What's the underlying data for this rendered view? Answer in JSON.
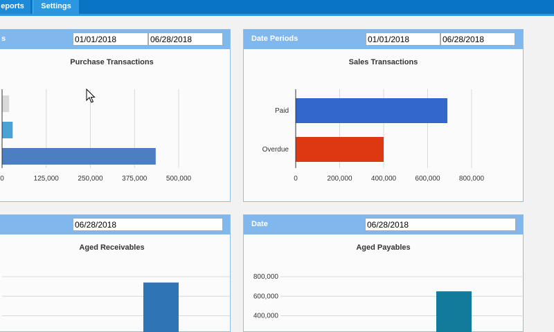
{
  "nav": {
    "tabs": [
      {
        "label": "eports"
      },
      {
        "label": "Settings"
      }
    ]
  },
  "panels": {
    "purchase": {
      "header_title": "s",
      "start_date": "01/01/2018",
      "end_date": "06/28/2018"
    },
    "sales": {
      "header_title": "Date Periods",
      "start_date": "01/01/2018",
      "end_date": "06/28/2018"
    },
    "receivables": {
      "date": "06/28/2018"
    },
    "payables": {
      "header_title": "Date",
      "date": "06/28/2018"
    }
  },
  "colors": {
    "nav_bg": "#0a74c4",
    "panel_header": "#80b8ee"
  },
  "chart_data": [
    {
      "type": "bar",
      "orientation": "horizontal",
      "title": "Purchase Transactions",
      "categories": [
        "",
        "",
        ""
      ],
      "values": [
        20000,
        30000,
        435000
      ],
      "colors": [
        "#d9d9d9",
        "#4aa3d4",
        "#4a7fc1"
      ],
      "xlim": [
        0,
        500000
      ],
      "xticks": [
        "0",
        "125,000",
        "250,000",
        "375,000",
        "500,000"
      ],
      "grid": true
    },
    {
      "type": "bar",
      "orientation": "horizontal",
      "title": "Sales Transactions",
      "categories": [
        "Paid",
        "Overdue"
      ],
      "values": [
        690000,
        400000
      ],
      "colors": [
        "#3467cc",
        "#dc3912"
      ],
      "xlim": [
        0,
        800000
      ],
      "xticks": [
        "0",
        "200,000",
        "400,000",
        "600,000",
        "800,000"
      ],
      "grid": true
    },
    {
      "type": "bar",
      "title": "Aged Receivables",
      "values": [
        740000
      ],
      "colors": [
        "#2f74b5"
      ],
      "ylim": [
        0,
        800000
      ],
      "grid": true
    },
    {
      "type": "bar",
      "title": "Aged Payables",
      "values": [
        650000
      ],
      "colors": [
        "#127b9b"
      ],
      "ylim": [
        0,
        800000
      ],
      "yticks": [
        "800,000",
        "600,000",
        "400,000"
      ],
      "grid": true
    }
  ]
}
